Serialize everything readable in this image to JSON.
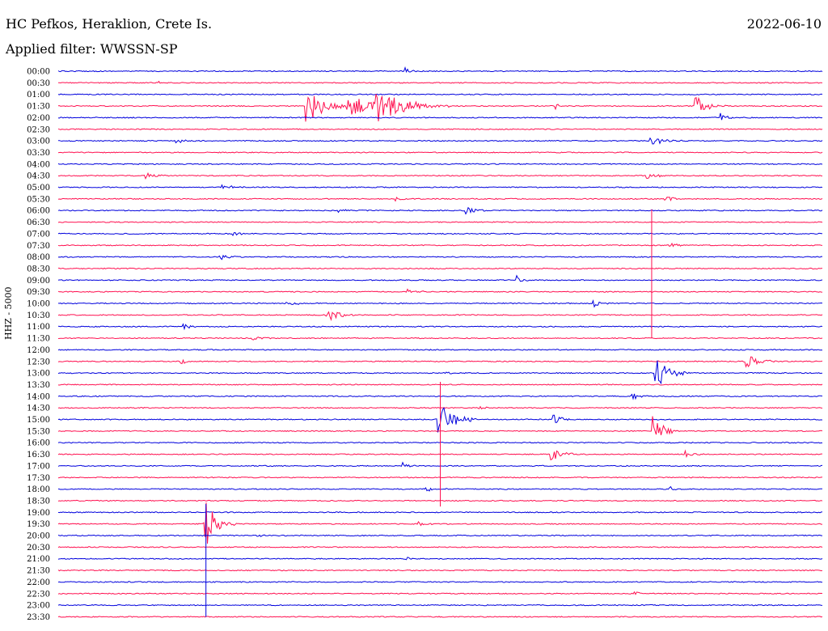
{
  "header": {
    "station": "HC Pefkos, Heraklion, Crete Is.",
    "date": "2022-06-10",
    "filter": "Applied filter: WWSSN-SP"
  },
  "chart_data": {
    "type": "line",
    "ylabel": "HHZ - 5000",
    "colors": {
      "even_row": "#0000dd",
      "odd_row": "#ff1050"
    },
    "row_labels": [
      "00:00",
      "00:30",
      "01:00",
      "01:30",
      "02:00",
      "02:30",
      "03:00",
      "03:30",
      "04:00",
      "04:30",
      "05:00",
      "05:30",
      "06:00",
      "06:30",
      "07:00",
      "07:30",
      "08:00",
      "08:30",
      "09:00",
      "09:30",
      "10:00",
      "10:30",
      "11:00",
      "11:30",
      "12:00",
      "12:30",
      "13:00",
      "13:30",
      "14:00",
      "14:30",
      "15:00",
      "15:30",
      "16:00",
      "16:30",
      "17:00",
      "17:30",
      "18:00",
      "18:30",
      "19:00",
      "19:30",
      "20:00",
      "20:30",
      "21:00",
      "21:30",
      "22:00",
      "22:30",
      "23:00",
      "23:30"
    ],
    "time_span_minutes": 30,
    "events": [
      {
        "row": 0,
        "minute": 13.6,
        "amplitude": 0.6,
        "duration": 0.5
      },
      {
        "row": 1,
        "minute": 3.9,
        "amplitude": 0.3,
        "duration": 0.3
      },
      {
        "row": 3,
        "minute": 9.7,
        "amplitude": 2.4,
        "duration": 2.0
      },
      {
        "row": 3,
        "minute": 11.3,
        "amplitude": 1.6,
        "duration": 3.0
      },
      {
        "row": 3,
        "minute": 12.4,
        "amplitude": 2.2,
        "duration": 3.0
      },
      {
        "row": 3,
        "minute": 19.5,
        "amplitude": 0.5,
        "duration": 0.5
      },
      {
        "row": 3,
        "minute": 25.0,
        "amplitude": 1.6,
        "duration": 1.2
      },
      {
        "row": 4,
        "minute": 26.0,
        "amplitude": 0.6,
        "duration": 0.6
      },
      {
        "row": 6,
        "minute": 23.2,
        "amplitude": 0.6,
        "duration": 1.5
      },
      {
        "row": 6,
        "minute": 4.6,
        "amplitude": 0.3,
        "duration": 1.0
      },
      {
        "row": 9,
        "minute": 3.4,
        "amplitude": 0.4,
        "duration": 1.0
      },
      {
        "row": 9,
        "minute": 23.0,
        "amplitude": 0.6,
        "duration": 1.0
      },
      {
        "row": 10,
        "minute": 6.4,
        "amplitude": 0.4,
        "duration": 1.0
      },
      {
        "row": 11,
        "minute": 13.2,
        "amplitude": 0.4,
        "duration": 0.5
      },
      {
        "row": 11,
        "minute": 23.8,
        "amplitude": 0.5,
        "duration": 1.0
      },
      {
        "row": 12,
        "minute": 11.0,
        "amplitude": 0.4,
        "duration": 0.5
      },
      {
        "row": 12,
        "minute": 16.0,
        "amplitude": 0.5,
        "duration": 1.0
      },
      {
        "row": 14,
        "minute": 6.8,
        "amplitude": 0.5,
        "duration": 0.8
      },
      {
        "row": 15,
        "minute": 24.0,
        "amplitude": 0.5,
        "duration": 1.0
      },
      {
        "row": 16,
        "minute": 6.3,
        "amplitude": 0.4,
        "duration": 1.0
      },
      {
        "row": 18,
        "minute": 18.0,
        "amplitude": 0.5,
        "duration": 0.5
      },
      {
        "row": 19,
        "minute": 13.7,
        "amplitude": 0.4,
        "duration": 1.0
      },
      {
        "row": 20,
        "minute": 8.9,
        "amplitude": 0.4,
        "duration": 1.0
      },
      {
        "row": 20,
        "minute": 21.0,
        "amplitude": 0.5,
        "duration": 0.7
      },
      {
        "row": 21,
        "minute": 10.5,
        "amplitude": 1.1,
        "duration": 1.2
      },
      {
        "row": 22,
        "minute": 4.9,
        "amplitude": 0.3,
        "duration": 1.0
      },
      {
        "row": 23,
        "minute": 7.6,
        "amplitude": 0.4,
        "duration": 1.0
      },
      {
        "row": 25,
        "minute": 4.8,
        "amplitude": 0.5,
        "duration": 0.5
      },
      {
        "row": 25,
        "minute": 27.0,
        "amplitude": 1.1,
        "duration": 1.2
      },
      {
        "row": 26,
        "minute": 23.4,
        "amplitude": 2.2,
        "duration": 1.5
      },
      {
        "row": 26,
        "minute": 15.1,
        "amplitude": 0.5,
        "duration": 0.5
      },
      {
        "row": 28,
        "minute": 22.5,
        "amplitude": 0.6,
        "duration": 0.7
      },
      {
        "row": 29,
        "minute": 16.5,
        "amplitude": 0.4,
        "duration": 0.5
      },
      {
        "row": 30,
        "minute": 14.9,
        "amplitude": 2.8,
        "duration": 1.5
      },
      {
        "row": 30,
        "minute": 19.4,
        "amplitude": 0.8,
        "duration": 0.8
      },
      {
        "row": 31,
        "minute": 23.3,
        "amplitude": 2.6,
        "duration": 1.0
      },
      {
        "row": 33,
        "minute": 19.3,
        "amplitude": 1.4,
        "duration": 1.0
      },
      {
        "row": 33,
        "minute": 24.6,
        "amplitude": 0.5,
        "duration": 1.0
      },
      {
        "row": 34,
        "minute": 13.5,
        "amplitude": 0.5,
        "duration": 0.7
      },
      {
        "row": 36,
        "minute": 14.3,
        "amplitude": 0.3,
        "duration": 1.5
      },
      {
        "row": 36,
        "minute": 24.0,
        "amplitude": 0.4,
        "duration": 0.6
      },
      {
        "row": 39,
        "minute": 5.7,
        "amplitude": 3.6,
        "duration": 1.3
      },
      {
        "row": 39,
        "minute": 14.1,
        "amplitude": 0.4,
        "duration": 0.8
      },
      {
        "row": 40,
        "minute": 7.8,
        "amplitude": 0.4,
        "duration": 0.5
      },
      {
        "row": 42,
        "minute": 13.6,
        "amplitude": 0.5,
        "duration": 0.5
      },
      {
        "row": 45,
        "minute": 22.6,
        "amplitude": 0.4,
        "duration": 0.6
      }
    ],
    "spikes": [
      {
        "row": 13,
        "minute": 23.3,
        "amplitude_rows": 13.8,
        "down_rows": 10.0
      },
      {
        "row": 27,
        "minute": 15.0,
        "amplitude_rows": 3.0,
        "down_rows": 10.5
      },
      {
        "row": 38,
        "minute": 5.8,
        "amplitude_rows": 9.0,
        "down_rows": 9.0
      }
    ]
  }
}
